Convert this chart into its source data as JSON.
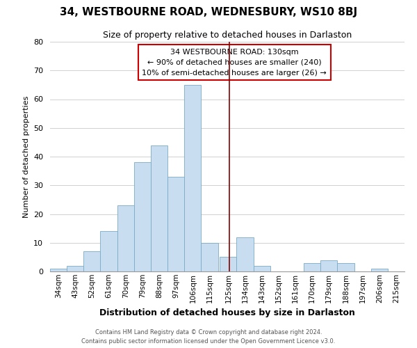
{
  "title": "34, WESTBOURNE ROAD, WEDNESBURY, WS10 8BJ",
  "subtitle": "Size of property relative to detached houses in Darlaston",
  "xlabel": "Distribution of detached houses by size in Darlaston",
  "ylabel": "Number of detached properties",
  "bin_labels": [
    "34sqm",
    "43sqm",
    "52sqm",
    "61sqm",
    "70sqm",
    "79sqm",
    "88sqm",
    "97sqm",
    "106sqm",
    "115sqm",
    "125sqm",
    "134sqm",
    "143sqm",
    "152sqm",
    "161sqm",
    "170sqm",
    "179sqm",
    "188sqm",
    "197sqm",
    "206sqm",
    "215sqm"
  ],
  "bar_heights": [
    1,
    2,
    7,
    14,
    23,
    38,
    44,
    33,
    65,
    10,
    5,
    12,
    2,
    0,
    0,
    3,
    4,
    3,
    0,
    1
  ],
  "bar_color": "#c8ddef",
  "bar_edge_color": "#7aaac8",
  "grid_color": "#d0d0d0",
  "vline_x": 130,
  "vline_color": "#880000",
  "annotation_title": "34 WESTBOURNE ROAD: 130sqm",
  "annotation_line1": "← 90% of detached houses are smaller (240)",
  "annotation_line2": "10% of semi-detached houses are larger (26) →",
  "annotation_box_edge": "#cc0000",
  "ylim": [
    0,
    80
  ],
  "yticks": [
    0,
    10,
    20,
    30,
    40,
    50,
    60,
    70,
    80
  ],
  "footer1": "Contains HM Land Registry data © Crown copyright and database right 2024.",
  "footer2": "Contains public sector information licensed under the Open Government Licence v3.0.",
  "bin_edges": [
    34,
    43,
    52,
    61,
    70,
    79,
    88,
    97,
    106,
    115,
    125,
    134,
    143,
    152,
    161,
    170,
    179,
    188,
    197,
    206,
    215
  ],
  "bin_width": 9
}
